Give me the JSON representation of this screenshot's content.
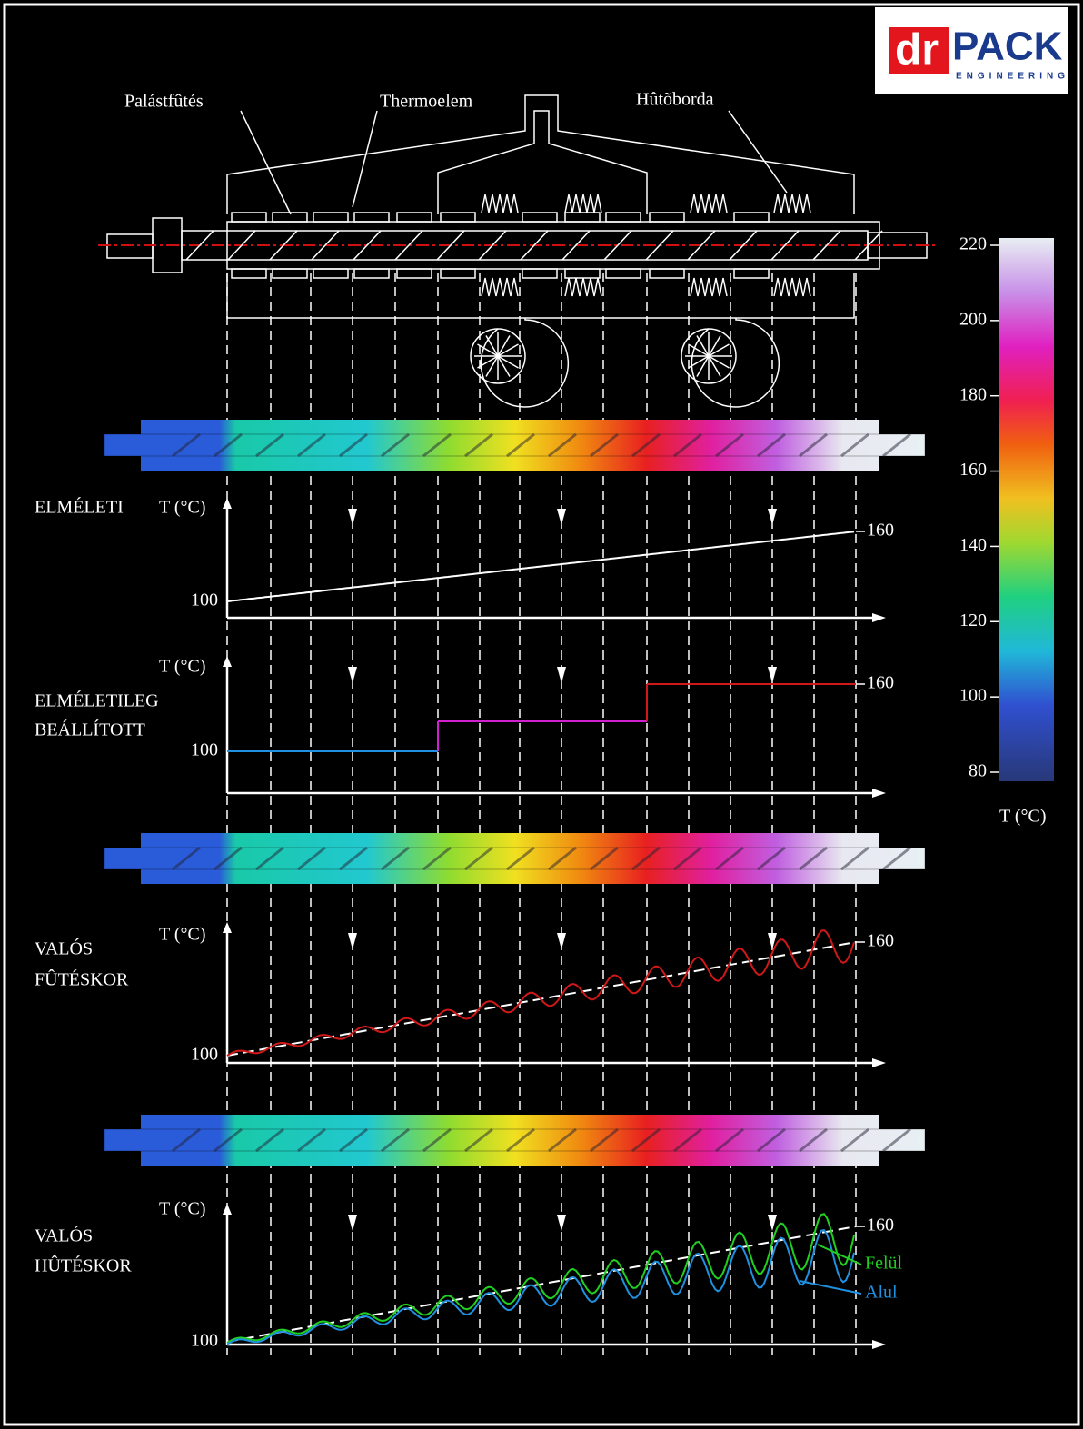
{
  "logo": {
    "brand_left": "dr",
    "brand_right": "PACK",
    "tagline": "ENGINEERING"
  },
  "labels": [
    "Palástfûtés",
    "Thermoelem",
    "Hûtõborda"
  ],
  "colorbar": {
    "ticks": [
      220,
      200,
      180,
      160,
      140,
      120,
      100,
      80
    ],
    "label": "T (°C)"
  },
  "panels": [
    {
      "title_lines": [
        "ELMÉLETI"
      ],
      "axis_label": "T (°C)",
      "low": 100,
      "high": 160
    },
    {
      "title_lines": [
        "ELMÉLETILEG",
        "BEÁLLÍTOTT"
      ],
      "axis_label": "T (°C)",
      "low": 100,
      "high": 160
    },
    {
      "title_lines": [
        "VALÓS",
        "FÛTÉSKOR"
      ],
      "axis_label": "T (°C)",
      "low": 100,
      "high": 160
    },
    {
      "title_lines": [
        "VALÓS",
        "HÛTÉSKOR"
      ],
      "axis_label": "T (°C)",
      "low": 100,
      "high": 160,
      "legend": [
        "Felül",
        "Alul"
      ]
    }
  ]
}
